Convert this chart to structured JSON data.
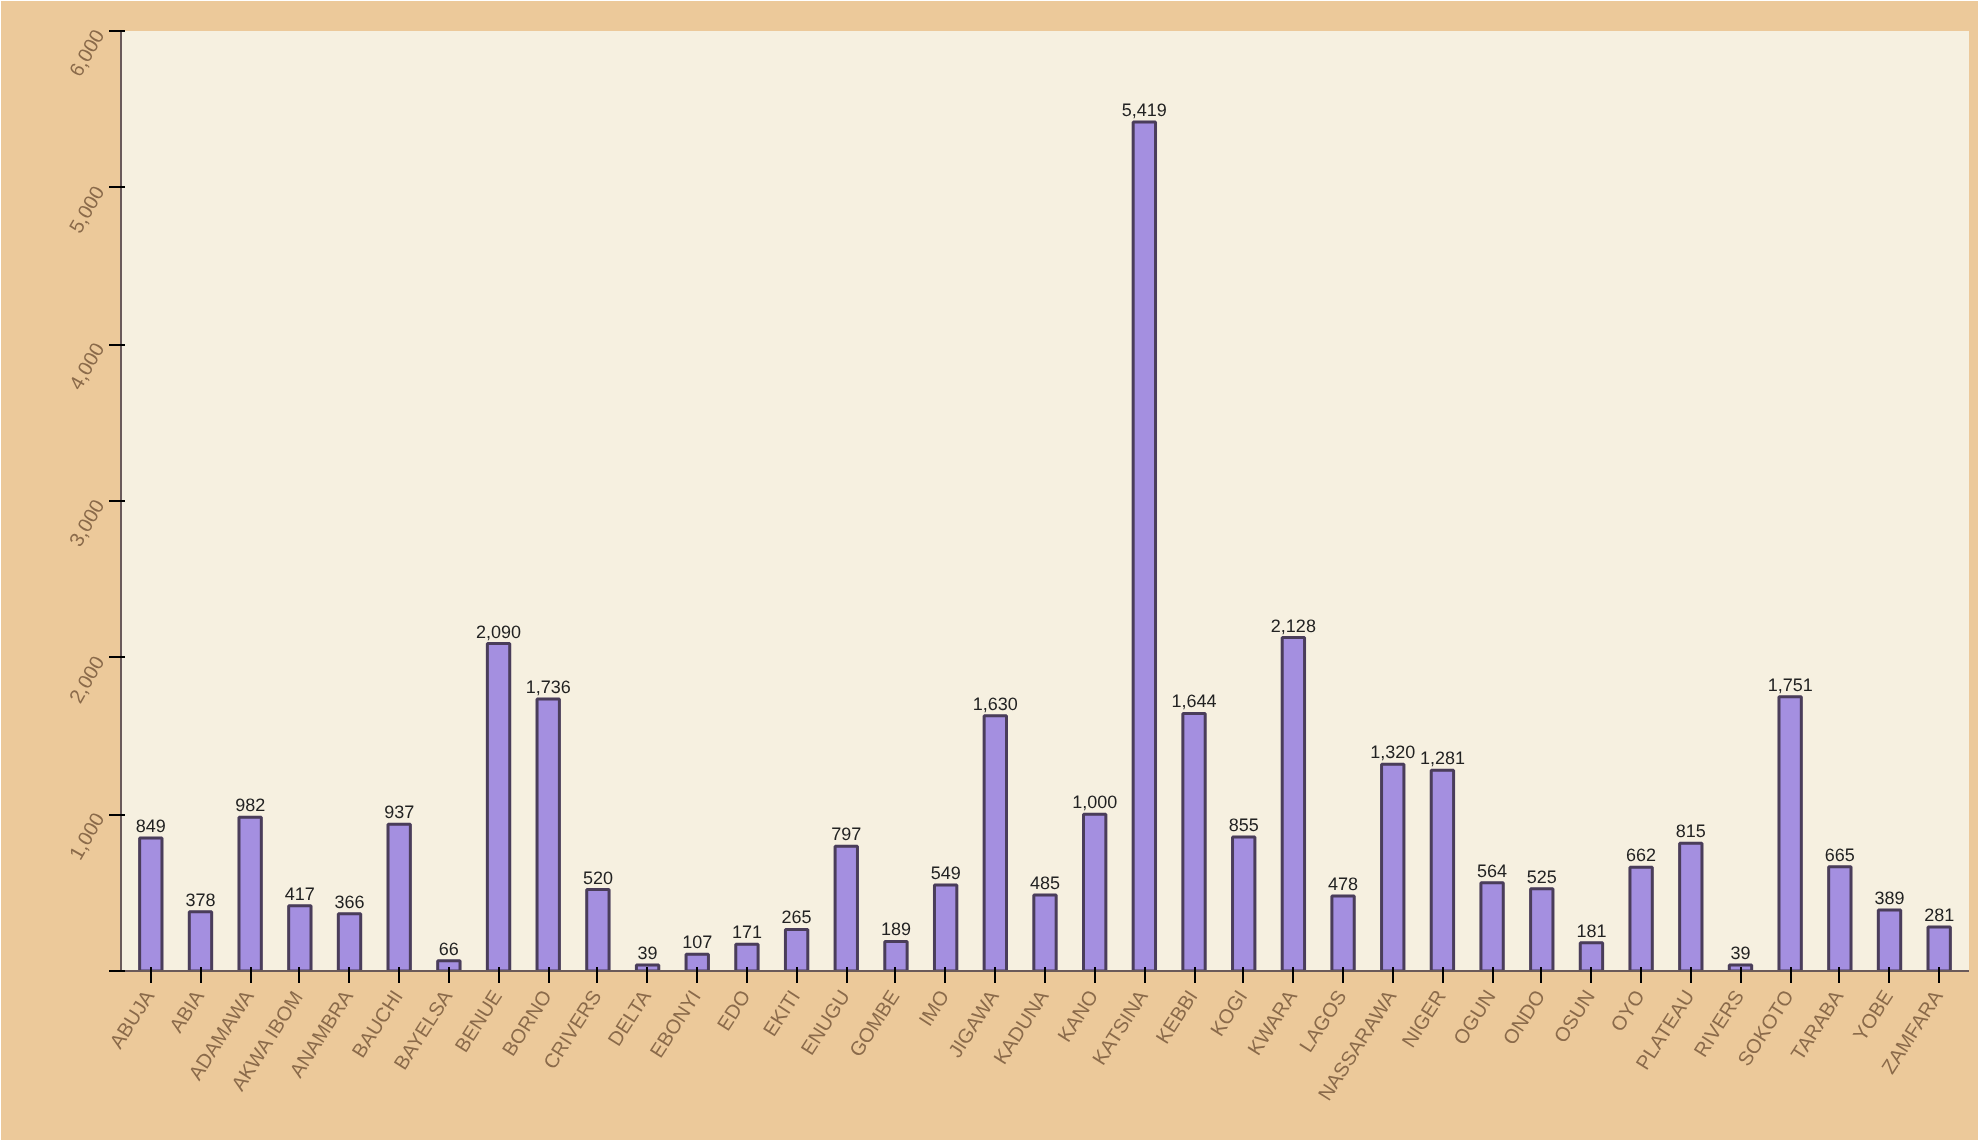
{
  "chart_data": {
    "type": "bar",
    "categories": [
      "ABUJA",
      "ABIA",
      "ADAMAWA",
      "AKWA IBOM",
      "ANAMBRA",
      "BAUCHI",
      "BAYELSA",
      "BENUE",
      "BORNO",
      "CRIVERS",
      "DELTA",
      "EBONYI",
      "EDO",
      "EKITI",
      "ENUGU",
      "GOMBE",
      "IMO",
      "JIGAWA",
      "KADUNA",
      "KANO",
      "KATSINA",
      "KEBBI",
      "KOGI",
      "KWARA",
      "LAGOS",
      "NASSARAWA",
      "NIGER",
      "OGUN",
      "ONDO",
      "OSUN",
      "OYO",
      "PLATEAU",
      "RIVERS",
      "SOKOTO",
      "TARABA",
      "YOBE",
      "ZAMFARA"
    ],
    "values": [
      849,
      378,
      982,
      417,
      366,
      937,
      66,
      2090,
      1736,
      520,
      39,
      107,
      171,
      265,
      797,
      189,
      549,
      1630,
      485,
      1000,
      5419,
      1644,
      855,
      2128,
      478,
      1320,
      1281,
      564,
      525,
      181,
      662,
      815,
      39,
      1751,
      665,
      389,
      281
    ],
    "color": "#a48fe0",
    "ylim": [
      0,
      6000
    ],
    "yticks": [
      {
        "value": 0,
        "label": null
      },
      {
        "value": 1000,
        "label": "1,000"
      },
      {
        "value": 2000,
        "label": "2,000"
      },
      {
        "value": 3000,
        "label": "3,000"
      },
      {
        "value": 4000,
        "label": "4,000"
      },
      {
        "value": 5000,
        "label": "5,000"
      },
      {
        "value": 6000,
        "label": "6,000"
      }
    ],
    "value_labels": [
      "849",
      "378",
      "982",
      "417",
      "366",
      "937",
      "66",
      "2,090",
      "1,736",
      "520",
      "39",
      "107",
      "171",
      "265",
      "797",
      "189",
      "549",
      "1,630",
      "485",
      "1,000",
      "5,419",
      "1,644",
      "855",
      "2,128",
      "478",
      "1,320",
      "1,281",
      "564",
      "525",
      "181",
      "662",
      "815",
      "39",
      "1,751",
      "665",
      "389",
      "281"
    ],
    "grid": false
  }
}
